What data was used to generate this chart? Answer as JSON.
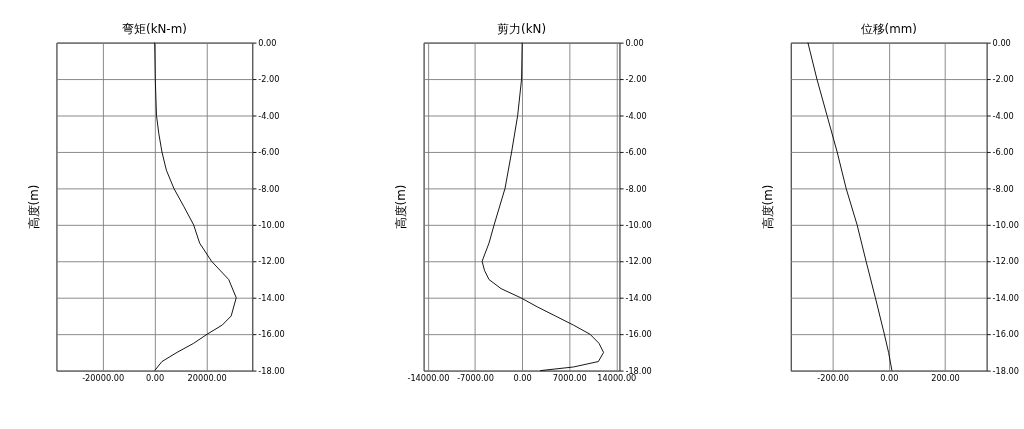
{
  "chart_data": [
    {
      "type": "line",
      "title": "弯矩(kN-m)",
      "ylabel": "高度(m)",
      "grid": true,
      "series": [
        {
          "color": "#000000",
          "x": [
            0,
            230,
            700,
            1600,
            2800,
            4500,
            7400,
            11250,
            15000,
            17300,
            21900,
            28500,
            31400,
            29450,
            26000,
            20200,
            15000,
            8600,
            2800,
            0
          ],
          "values": [
            0,
            -2,
            -4,
            -5,
            -6,
            -7,
            -8,
            -9,
            -10,
            -11,
            -12,
            -13,
            -14,
            -15,
            -15.5,
            -16,
            -16.5,
            -17,
            -17.5,
            -18
          ]
        }
      ],
      "xlim": [
        -37800,
        37600
      ],
      "ylim": [
        -18,
        0
      ],
      "xticks": [
        {
          "value": -20000,
          "label": "-20000.00"
        },
        {
          "value": 0,
          "label": "0.00"
        },
        {
          "value": 20000,
          "label": "20000.00"
        }
      ],
      "yticks": [
        {
          "value": 0,
          "label": "0.00"
        },
        {
          "value": -2,
          "label": "-2.00"
        },
        {
          "value": -4,
          "label": "-4.00"
        },
        {
          "value": -6,
          "label": "-6.00"
        },
        {
          "value": -8,
          "label": "-8.00"
        },
        {
          "value": -10,
          "label": "-10.00"
        },
        {
          "value": -12,
          "label": "-12.00"
        },
        {
          "value": -14,
          "label": "-14.00"
        },
        {
          "value": -16,
          "label": "-16.00"
        },
        {
          "value": -18,
          "label": "-18.00"
        }
      ]
    },
    {
      "type": "line",
      "title": "剪力(kN)",
      "ylabel": "高度(m)",
      "grid": true,
      "series": [
        {
          "color": "#000000",
          "x": [
            0,
            -90,
            -670,
            -1570,
            -2550,
            -4170,
            -4930,
            -5960,
            -5600,
            -4930,
            -3140,
            -220,
            2240,
            4930,
            7620,
            10080,
            11420,
            12100,
            11330,
            7620,
            2690
          ],
          "values": [
            0,
            -2,
            -4,
            -6,
            -8,
            -10,
            -11,
            -12,
            -12.5,
            -13,
            -13.5,
            -14,
            -14.5,
            -15,
            -15.5,
            -16,
            -16.5,
            -17,
            -17.5,
            -17.8,
            -18
          ]
        }
      ],
      "xlim": [
        -14650,
        14470
      ],
      "ylim": [
        -18,
        0
      ],
      "xticks": [
        {
          "value": -14000,
          "label": "-14000.00"
        },
        {
          "value": -7000,
          "label": "-7000.00"
        },
        {
          "value": 0,
          "label": "0.00"
        },
        {
          "value": 7000,
          "label": "7000.00"
        },
        {
          "value": 14000,
          "label": "14000.00"
        }
      ],
      "yticks": [
        {
          "value": 0,
          "label": "0.00"
        },
        {
          "value": -2,
          "label": "-2.00"
        },
        {
          "value": -4,
          "label": "-4.00"
        },
        {
          "value": -6,
          "label": "-6.00"
        },
        {
          "value": -8,
          "label": "-8.00"
        },
        {
          "value": -10,
          "label": "-10.00"
        },
        {
          "value": -12,
          "label": "-12.00"
        },
        {
          "value": -14,
          "label": "-14.00"
        },
        {
          "value": -16,
          "label": "-16.00"
        },
        {
          "value": -18,
          "label": "-18.00"
        }
      ]
    },
    {
      "type": "line",
      "title": "位移(mm)",
      "ylabel": "高度(m)",
      "grid": true,
      "series": [
        {
          "color": "#000000",
          "x": [
            -288,
            -256,
            -220,
            -184,
            -152,
            -113,
            -81,
            -48,
            -16,
            -1,
            11
          ],
          "values": [
            0,
            -2,
            -4,
            -6,
            -8,
            -10,
            -12,
            -14,
            -16,
            -17,
            -18
          ]
        }
      ],
      "xlim": [
        -349,
        348
      ],
      "ylim": [
        -18,
        0
      ],
      "xticks": [
        {
          "value": -200,
          "label": "-200.00"
        },
        {
          "value": 0,
          "label": "0.00"
        },
        {
          "value": 200,
          "label": "200.00"
        }
      ],
      "yticks": [
        {
          "value": 0,
          "label": "0.00"
        },
        {
          "value": -2,
          "label": "-2.00"
        },
        {
          "value": -4,
          "label": "-4.00"
        },
        {
          "value": -6,
          "label": "-6.00"
        },
        {
          "value": -8,
          "label": "-8.00"
        },
        {
          "value": -10,
          "label": "-10.00"
        },
        {
          "value": -12,
          "label": "-12.00"
        },
        {
          "value": -14,
          "label": "-14.00"
        },
        {
          "value": -16,
          "label": "-16.00"
        },
        {
          "value": -18,
          "label": "-18.00"
        }
      ]
    }
  ]
}
